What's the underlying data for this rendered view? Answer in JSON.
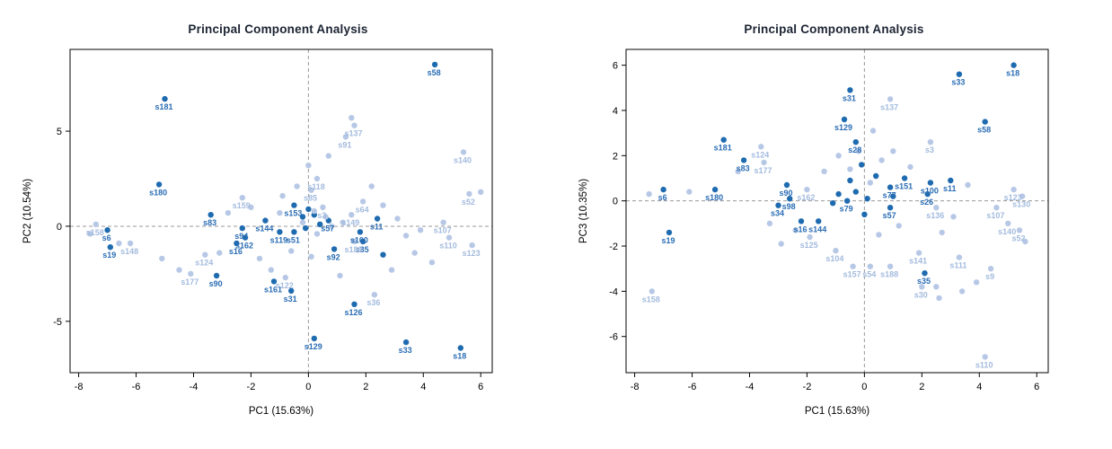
{
  "chart_data": [
    {
      "type": "scatter",
      "title": "Principal Component Analysis",
      "xlabel": "PC1 (15.63%)",
      "ylabel": "PC2 (10.54%)",
      "xlim": [
        -8.3,
        6.4
      ],
      "ylim": [
        -7.7,
        9.3
      ],
      "xticks": [
        -8,
        -6,
        -4,
        -2,
        0,
        2,
        4,
        6
      ],
      "yticks": [
        -5,
        0,
        5
      ],
      "grid": "dashed-zero-lines",
      "legend": "none",
      "series": [
        {
          "name": "group1",
          "color": "#1f6bb0",
          "label_color": "#2a6db4",
          "points": [
            {
              "x": 4.4,
              "y": 8.5,
              "l": "s58"
            },
            {
              "x": -5.0,
              "y": 6.7,
              "l": "s181"
            },
            {
              "x": -5.2,
              "y": 2.2,
              "l": "s180"
            },
            {
              "x": -3.4,
              "y": 0.6,
              "l": "s83"
            },
            {
              "x": -7.0,
              "y": -0.2,
              "l": "s6"
            },
            {
              "x": -6.9,
              "y": -1.1,
              "l": "s19"
            },
            {
              "x": -2.3,
              "y": -0.1,
              "l": "s94"
            },
            {
              "x": -2.2,
              "y": -0.6,
              "l": "s162"
            },
            {
              "x": -2.5,
              "y": -0.9,
              "l": "s16"
            },
            {
              "x": -1.5,
              "y": 0.3,
              "l": "s144"
            },
            {
              "x": -1.0,
              "y": -0.3,
              "l": "s119"
            },
            {
              "x": -0.5,
              "y": -0.3,
              "l": "s51"
            },
            {
              "x": -0.5,
              "y": 1.1,
              "l": "s153"
            },
            {
              "x": 0.7,
              "y": 0.3,
              "l": "s57"
            },
            {
              "x": 1.8,
              "y": -0.3,
              "l": "s100"
            },
            {
              "x": 1.9,
              "y": -0.8,
              "l": "s35"
            },
            {
              "x": 2.4,
              "y": 0.4,
              "l": "s11"
            },
            {
              "x": 0.9,
              "y": -1.2,
              "l": "s92"
            },
            {
              "x": -3.2,
              "y": -2.6,
              "l": "s90"
            },
            {
              "x": -1.2,
              "y": -2.9,
              "l": "s161"
            },
            {
              "x": -0.6,
              "y": -3.4,
              "l": "s31"
            },
            {
              "x": 1.6,
              "y": -4.1,
              "l": "s126"
            },
            {
              "x": 0.2,
              "y": -5.9,
              "l": "s129"
            },
            {
              "x": 3.4,
              "y": -6.1,
              "l": "s33"
            },
            {
              "x": 5.3,
              "y": -6.4,
              "l": "s18"
            },
            {
              "x": -0.2,
              "y": 0.5
            },
            {
              "x": 0.2,
              "y": 0.6
            },
            {
              "x": 0.4,
              "y": 0.1
            },
            {
              "x": -0.1,
              "y": -0.1
            },
            {
              "x": 2.6,
              "y": -1.5
            },
            {
              "x": 0.0,
              "y": 0.9
            }
          ]
        },
        {
          "name": "group2",
          "color": "#b7c8e6",
          "label_color": "#a3bbde",
          "points": [
            {
              "x": 1.6,
              "y": 5.3,
              "l": "s137"
            },
            {
              "x": 1.3,
              "y": 4.7,
              "l": "s91"
            },
            {
              "x": 5.4,
              "y": 3.9,
              "l": "s140"
            },
            {
              "x": 5.6,
              "y": 1.7,
              "l": "s52"
            },
            {
              "x": 0.3,
              "y": 2.5,
              "l": "s118"
            },
            {
              "x": 0.1,
              "y": 1.9,
              "l": "s85"
            },
            {
              "x": -2.3,
              "y": 1.5,
              "l": "s159"
            },
            {
              "x": 1.9,
              "y": 1.3,
              "l": "s64"
            },
            {
              "x": 1.5,
              "y": 0.6,
              "l": "s149"
            },
            {
              "x": 0.5,
              "y": 1.0,
              "l": "s3"
            },
            {
              "x": 4.7,
              "y": 0.2,
              "l": "s107"
            },
            {
              "x": 4.9,
              "y": -0.6,
              "l": "s110"
            },
            {
              "x": 5.7,
              "y": -1.0,
              "l": "s123"
            },
            {
              "x": 1.6,
              "y": -0.8,
              "l": "s188"
            },
            {
              "x": -6.2,
              "y": -0.9,
              "l": "s148"
            },
            {
              "x": -7.4,
              "y": 0.1,
              "l": "s158"
            },
            {
              "x": -3.6,
              "y": -1.5,
              "l": "s124"
            },
            {
              "x": -4.1,
              "y": -2.5,
              "l": "s177"
            },
            {
              "x": -0.8,
              "y": -2.7,
              "l": "s122"
            },
            {
              "x": 2.3,
              "y": -3.6,
              "l": "s36"
            },
            {
              "x": -7.6,
              "y": -0.4
            },
            {
              "x": -6.6,
              "y": -0.9
            },
            {
              "x": -5.1,
              "y": -1.7
            },
            {
              "x": -4.5,
              "y": -2.3
            },
            {
              "x": -3.1,
              "y": -1.4
            },
            {
              "x": -2.8,
              "y": 0.7
            },
            {
              "x": -2.0,
              "y": 1.0
            },
            {
              "x": -1.7,
              "y": -1.7
            },
            {
              "x": -1.3,
              "y": -2.3
            },
            {
              "x": -0.9,
              "y": 1.6
            },
            {
              "x": -0.4,
              "y": 2.1
            },
            {
              "x": 0.0,
              "y": 3.2
            },
            {
              "x": 0.7,
              "y": 3.7
            },
            {
              "x": 1.5,
              "y": 5.7
            },
            {
              "x": 2.2,
              "y": 2.1
            },
            {
              "x": 2.6,
              "y": 1.1
            },
            {
              "x": 3.1,
              "y": 0.4
            },
            {
              "x": 3.4,
              "y": -0.5
            },
            {
              "x": 3.7,
              "y": -1.4
            },
            {
              "x": 2.9,
              "y": -2.3
            },
            {
              "x": 1.1,
              "y": -2.6
            },
            {
              "x": 4.3,
              "y": -1.9
            },
            {
              "x": 6.0,
              "y": 1.8
            },
            {
              "x": 0.2,
              "y": 0.8
            },
            {
              "x": 0.6,
              "y": 0.5
            },
            {
              "x": -0.2,
              "y": 0.2
            },
            {
              "x": 0.3,
              "y": -0.4
            },
            {
              "x": 0.8,
              "y": 0.0
            },
            {
              "x": -0.6,
              "y": -1.3
            },
            {
              "x": 0.1,
              "y": -1.6
            },
            {
              "x": 1.2,
              "y": 0.2
            },
            {
              "x": -1.0,
              "y": 0.7
            },
            {
              "x": 3.9,
              "y": -0.2
            }
          ]
        }
      ]
    },
    {
      "type": "scatter",
      "title": "Principal Component Analysis",
      "xlabel": "PC1 (15.63%)",
      "ylabel": "PC3 (10.35%)",
      "xlim": [
        -8.3,
        6.4
      ],
      "ylim": [
        -7.6,
        6.7
      ],
      "xticks": [
        -8,
        -6,
        -4,
        -2,
        0,
        2,
        4,
        6
      ],
      "yticks": [
        -6,
        -4,
        -2,
        0,
        2,
        4,
        6
      ],
      "grid": "dashed-zero-lines",
      "legend": "none",
      "series": [
        {
          "name": "group1",
          "color": "#1f6bb0",
          "label_color": "#2a6db4",
          "points": [
            {
              "x": 5.2,
              "y": 6.0,
              "l": "s18"
            },
            {
              "x": 3.3,
              "y": 5.6,
              "l": "s33"
            },
            {
              "x": 4.2,
              "y": 3.5,
              "l": "s58"
            },
            {
              "x": -0.5,
              "y": 4.9,
              "l": "s31"
            },
            {
              "x": -0.7,
              "y": 3.6,
              "l": "s129"
            },
            {
              "x": -4.9,
              "y": 2.7,
              "l": "s181"
            },
            {
              "x": -4.2,
              "y": 1.8,
              "l": "s83"
            },
            {
              "x": -5.2,
              "y": 0.5,
              "l": "s180"
            },
            {
              "x": -7.0,
              "y": 0.5,
              "l": "s6"
            },
            {
              "x": -6.8,
              "y": -1.4,
              "l": "s19"
            },
            {
              "x": -2.7,
              "y": 0.7,
              "l": "s90"
            },
            {
              "x": -2.6,
              "y": 0.1,
              "l": "s98"
            },
            {
              "x": -3.0,
              "y": -0.2,
              "l": "s34"
            },
            {
              "x": -2.2,
              "y": -0.9,
              "l": "s16"
            },
            {
              "x": -1.6,
              "y": -0.9,
              "l": "s144"
            },
            {
              "x": 1.4,
              "y": 1.0,
              "l": "s151"
            },
            {
              "x": 2.3,
              "y": 0.8,
              "l": "s100"
            },
            {
              "x": 3.0,
              "y": 0.9,
              "l": "s11"
            },
            {
              "x": 0.9,
              "y": 0.6,
              "l": "s77"
            },
            {
              "x": 2.2,
              "y": 0.3,
              "l": "s26"
            },
            {
              "x": -0.6,
              "y": 0.0,
              "l": "s79"
            },
            {
              "x": 0.9,
              "y": -0.3,
              "l": "s57"
            },
            {
              "x": 2.1,
              "y": -3.2,
              "l": "s35"
            },
            {
              "x": -0.3,
              "y": 2.6,
              "l": "s28"
            },
            {
              "x": -0.9,
              "y": 0.3
            },
            {
              "x": -0.3,
              "y": 0.4
            },
            {
              "x": 0.1,
              "y": 0.1
            },
            {
              "x": 0.4,
              "y": 1.1
            },
            {
              "x": -0.1,
              "y": 1.6
            },
            {
              "x": -1.1,
              "y": -0.1
            },
            {
              "x": 0.0,
              "y": -0.6
            },
            {
              "x": 1.0,
              "y": 0.2
            },
            {
              "x": -0.5,
              "y": 0.9
            }
          ]
        },
        {
          "name": "group2",
          "color": "#b7c8e6",
          "label_color": "#a3bbde",
          "points": [
            {
              "x": 0.9,
              "y": 4.5,
              "l": "s137"
            },
            {
              "x": 2.3,
              "y": 2.6,
              "l": "s3"
            },
            {
              "x": -3.6,
              "y": 2.4,
              "l": "s124"
            },
            {
              "x": -3.5,
              "y": 1.7,
              "l": "s177"
            },
            {
              "x": -2.0,
              "y": 0.5,
              "l": "s162"
            },
            {
              "x": 5.2,
              "y": 0.5,
              "l": "s123"
            },
            {
              "x": 5.5,
              "y": 0.2,
              "l": "s130"
            },
            {
              "x": 4.6,
              "y": -0.3,
              "l": "s107"
            },
            {
              "x": 5.0,
              "y": -1.0,
              "l": "s140"
            },
            {
              "x": 5.4,
              "y": -1.3,
              "l": "s52"
            },
            {
              "x": 2.5,
              "y": -0.3,
              "l": "s136"
            },
            {
              "x": 1.9,
              "y": -2.3,
              "l": "s141"
            },
            {
              "x": 3.3,
              "y": -2.5,
              "l": "s111"
            },
            {
              "x": 4.4,
              "y": -3.0,
              "l": "s9"
            },
            {
              "x": 2.0,
              "y": -3.8,
              "l": "s30"
            },
            {
              "x": -7.4,
              "y": -4.0,
              "l": "s158"
            },
            {
              "x": -0.4,
              "y": -2.9,
              "l": "s157"
            },
            {
              "x": 0.2,
              "y": -2.9,
              "l": "s54"
            },
            {
              "x": 0.9,
              "y": -2.9,
              "l": "s188"
            },
            {
              "x": 4.2,
              "y": -6.9,
              "l": "s110"
            },
            {
              "x": -1.9,
              "y": -1.6,
              "l": "s125"
            },
            {
              "x": -1.0,
              "y": -2.2,
              "l": "s104"
            },
            {
              "x": -7.5,
              "y": 0.3
            },
            {
              "x": -6.1,
              "y": 0.4
            },
            {
              "x": -4.4,
              "y": 1.3
            },
            {
              "x": -3.3,
              "y": -1.0
            },
            {
              "x": -2.9,
              "y": -1.9
            },
            {
              "x": -2.4,
              "y": -1.3
            },
            {
              "x": -1.4,
              "y": 1.3
            },
            {
              "x": -0.9,
              "y": 2.0
            },
            {
              "x": 0.3,
              "y": 3.1
            },
            {
              "x": 1.0,
              "y": 2.2
            },
            {
              "x": 1.6,
              "y": 1.5
            },
            {
              "x": 3.6,
              "y": 0.7
            },
            {
              "x": 2.7,
              "y": -1.4
            },
            {
              "x": 3.1,
              "y": -0.7
            },
            {
              "x": 0.5,
              "y": -1.5
            },
            {
              "x": 1.2,
              "y": -1.1
            },
            {
              "x": 2.6,
              "y": -4.3
            },
            {
              "x": 3.4,
              "y": -4.0
            },
            {
              "x": 5.6,
              "y": -1.8
            },
            {
              "x": -0.2,
              "y": 2.2
            },
            {
              "x": 0.6,
              "y": 1.8
            },
            {
              "x": -0.5,
              "y": 1.4
            },
            {
              "x": 0.2,
              "y": 0.8
            },
            {
              "x": 2.5,
              "y": -3.8
            },
            {
              "x": 3.9,
              "y": -3.6
            }
          ]
        }
      ]
    }
  ]
}
